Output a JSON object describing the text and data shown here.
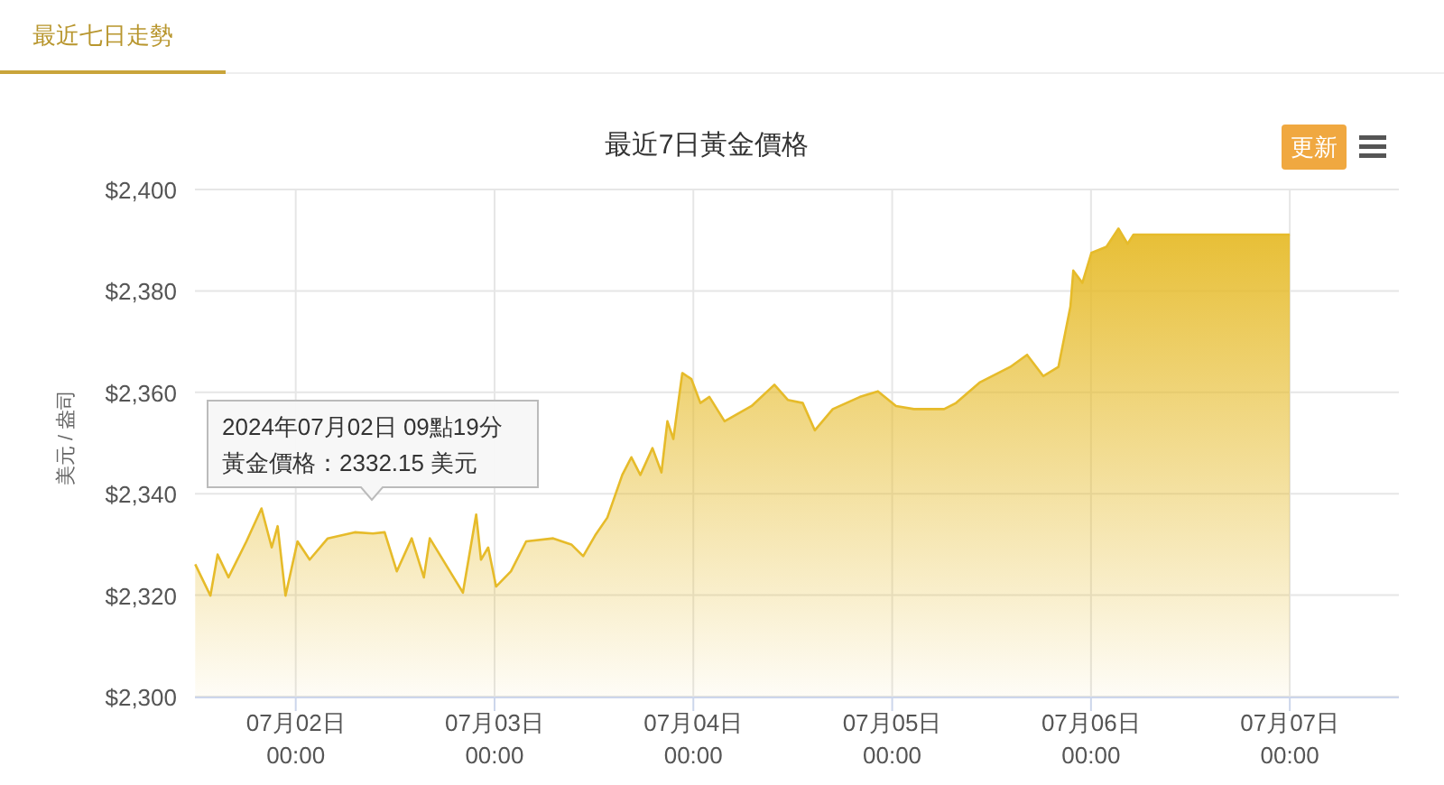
{
  "chart_data": {
    "type": "area",
    "title": "最近7日黃金價格",
    "ylabel": "美元 / 盎司",
    "annotations": [
      "最近七日走勢",
      "更新",
      "2024年07月02日 09點19分",
      "黃金價格：2332.15 美元"
    ],
    "x": [
      "2024-07-01T11:52",
      "2024-07-01T13:42",
      "2024-07-01T14:34",
      "2024-07-01T15:53",
      "2024-07-01T18:03",
      "2024-07-01T19:52",
      "2024-07-01T21:06",
      "2024-07-01T21:49",
      "2024-07-01T22:46",
      "2024-07-02T00:13",
      "2024-07-02T01:41",
      "2024-07-02T03:52",
      "2024-07-02T07:07",
      "2024-07-02T09:19",
      "2024-07-02T10:44",
      "2024-07-02T12:12",
      "2024-07-02T14:00",
      "2024-07-02T15:28",
      "2024-07-02T16:11",
      "2024-07-02T20:11",
      "2024-07-02T21:47",
      "2024-07-02T22:22",
      "2024-07-02T23:14",
      "2024-07-03T00:11",
      "2024-07-03T01:59",
      "2024-07-03T03:49",
      "2024-07-03T07:05",
      "2024-07-03T09:16",
      "2024-07-03T10:42",
      "2024-07-03T12:09",
      "2024-07-03T13:37",
      "2024-07-03T15:25",
      "2024-07-03T16:31",
      "2024-07-03T17:36",
      "2024-07-03T19:04",
      "2024-07-03T20:09",
      "2024-07-03T20:52",
      "2024-07-03T21:35",
      "2024-07-03T22:40",
      "2024-07-03T23:46",
      "2024-07-04T00:51",
      "2024-07-04T01:56",
      "2024-07-04T03:46",
      "2024-07-04T07:02",
      "2024-07-04T09:47",
      "2024-07-04T11:24",
      "2024-07-04T13:12",
      "2024-07-04T14:40",
      "2024-07-04T16:50",
      "2024-07-04T20:07",
      "2024-07-04T22:17",
      "2024-07-05T00:28",
      "2024-07-05T02:38",
      "2024-07-05T06:16",
      "2024-07-05T07:43",
      "2024-07-05T10:37",
      "2024-07-05T14:15",
      "2024-07-05T16:17",
      "2024-07-05T18:14",
      "2024-07-05T20:04",
      "2024-07-05T21:31",
      "2024-07-05T21:52",
      "2024-07-05T22:58",
      "2024-07-06T00:03",
      "2024-07-06T01:52",
      "2024-07-06T03:19",
      "2024-07-06T04:25",
      "2024-07-06T05:08",
      "2024-07-07T00:00"
    ],
    "series": [
      {
        "color": "#e6bb2a",
        "values": [
          2326.1,
          2319.9,
          2328.0,
          2323.5,
          2330.6,
          2337.1,
          2329.4,
          2333.6,
          2319.9,
          2330.6,
          2327.0,
          2331.2,
          2332.4,
          2332.15,
          2332.4,
          2324.7,
          2331.2,
          2323.5,
          2331.2,
          2320.5,
          2335.9,
          2327.0,
          2329.4,
          2321.7,
          2324.7,
          2330.6,
          2331.2,
          2330.0,
          2327.7,
          2331.8,
          2335.3,
          2343.7,
          2347.2,
          2343.7,
          2349.0,
          2344.2,
          2354.3,
          2350.8,
          2363.8,
          2362.6,
          2357.9,
          2359.1,
          2354.3,
          2357.3,
          2361.5,
          2358.5,
          2357.9,
          2352.5,
          2356.7,
          2359.1,
          2360.2,
          2357.3,
          2356.7,
          2356.7,
          2357.9,
          2362.0,
          2365.0,
          2367.4,
          2363.2,
          2365.0,
          2376.9,
          2384.0,
          2381.6,
          2387.5,
          2388.7,
          2392.3,
          2389.3,
          2391.1,
          2391.1
        ]
      }
    ],
    "xlim": [
      "2024-07-01T11:50",
      "2024-07-07T13:10"
    ],
    "xticks": [
      {
        "value": "2024-07-02",
        "label": "07月02日\n00:00"
      },
      {
        "value": "2024-07-03",
        "label": "07月03日\n00:00"
      },
      {
        "value": "2024-07-04",
        "label": "07月04日\n00:00"
      },
      {
        "value": "2024-07-05",
        "label": "07月05日\n00:00"
      },
      {
        "value": "2024-07-06",
        "label": "07月06日\n00:00"
      },
      {
        "value": "2024-07-07",
        "label": "07月07日\n00:00"
      }
    ],
    "ylim": [
      2300,
      2400
    ],
    "yticks": [
      {
        "value": 2300,
        "label": "$2,300"
      },
      {
        "value": 2320,
        "label": "$2,320"
      },
      {
        "value": 2340,
        "label": "$2,340"
      },
      {
        "value": 2360,
        "label": "$2,360"
      },
      {
        "value": 2380,
        "label": "$2,380"
      },
      {
        "value": 2400,
        "label": "$2,400"
      }
    ],
    "grid": true
  }
}
